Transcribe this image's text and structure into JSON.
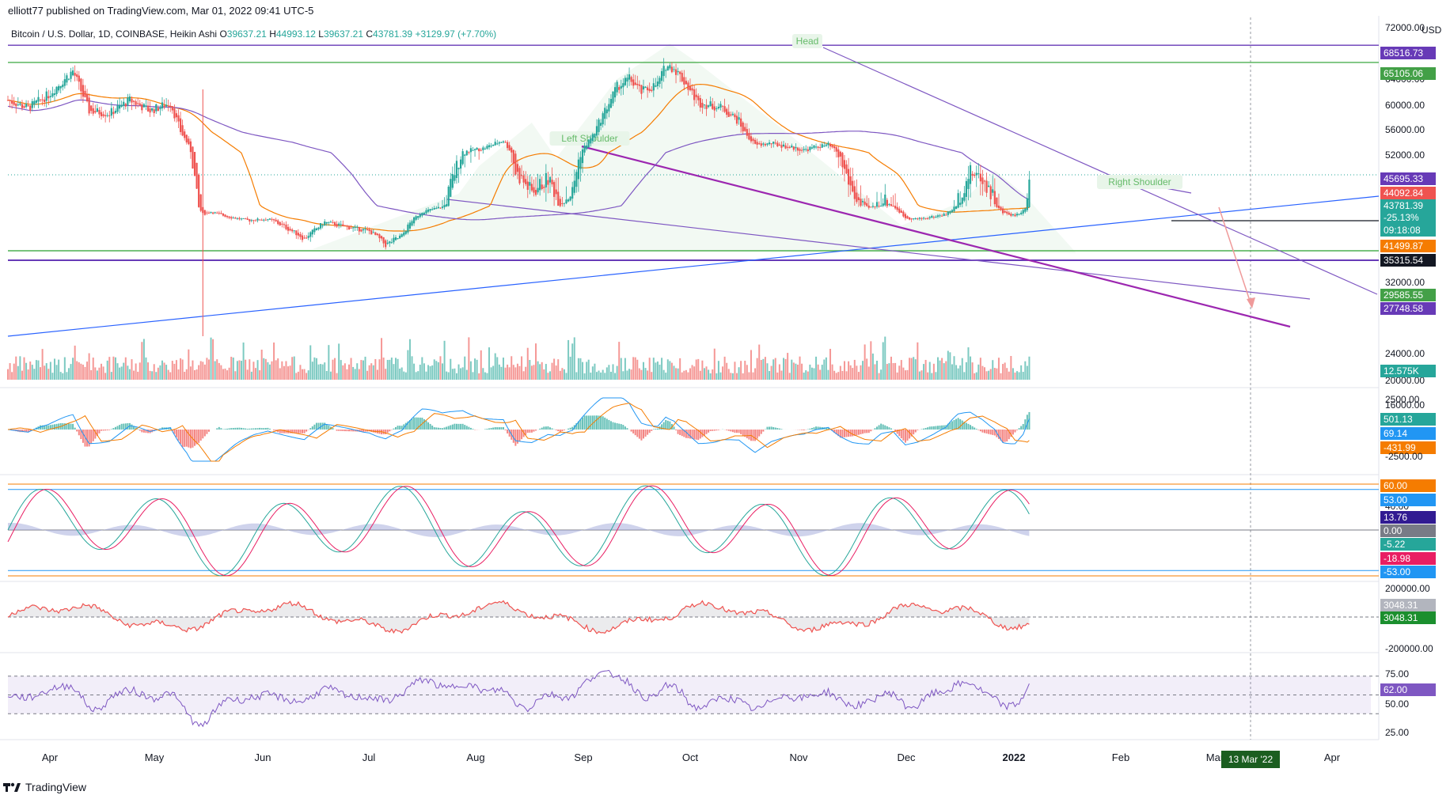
{
  "header": {
    "published": "elliott77 published on TradingView.com, Mar 01, 2022 09:41 UTC-5",
    "symbol": "Bitcoin / U.S. Dollar, 1D, COINBASE, Heikin Ashi",
    "o_label": "O",
    "o": "39637.21",
    "h_label": "H",
    "h": "44993.12",
    "l_label": "L",
    "l": "39637.21",
    "c_label": "C",
    "c": "43781.39",
    "change": "+3129.97 (+7.70%)"
  },
  "footer": {
    "brand": "TradingView"
  },
  "colors": {
    "bull": "#26a69a",
    "bear": "#ef5350",
    "ma_orange": "#f57c00",
    "ma_purple": "#7e57c2",
    "trend_blue": "#2962ff",
    "trend_magenta": "#9c27b0",
    "support_green": "#4caf50",
    "line_purple": "#673ab7"
  },
  "chart_data": [
    {
      "type": "candlestick",
      "title": "Bitcoin / U.S. Dollar, 1D, COINBASE, Heikin Ashi",
      "currency": "USD",
      "y_ticks": [
        "72000.00",
        "64000.00",
        "60000.00",
        "56000.00",
        "52000.00",
        "32000.00",
        "24000.00",
        "20000.00",
        "16000.00"
      ],
      "x_ticks": [
        "Apr",
        "May",
        "Jun",
        "Jul",
        "Aug",
        "Sep",
        "Oct",
        "Nov",
        "Dec",
        "2022",
        "Feb",
        "Mar",
        "Apr"
      ],
      "crosshair_date": "13 Mar '22",
      "annotations": [
        "Head",
        "Left Shoulder",
        "Right Shoulder"
      ],
      "price_labels": [
        {
          "text": "68516.73",
          "color": "#673ab7"
        },
        {
          "text": "65105.06",
          "color": "#43a047"
        },
        {
          "text": "45695.33",
          "color": "#673ab7"
        },
        {
          "text": "44092.84",
          "color": "#ef5350"
        },
        {
          "text": "43781.39",
          "color": "#26a69a"
        },
        {
          "text": "-25.13%",
          "color": "#26a69a"
        },
        {
          "text": "09:18:08",
          "color": "#26a69a"
        },
        {
          "text": "41499.87",
          "color": "#f57c00"
        },
        {
          "text": "35315.54",
          "color": "#131722"
        },
        {
          "text": "29585.55",
          "color": "#43a047"
        },
        {
          "text": "27748.58",
          "color": "#673ab7"
        },
        {
          "text": "12.575K",
          "color": "#26a69a"
        }
      ],
      "horizontal_levels": [
        68516.73,
        65105.06,
        29585.55,
        27748.58,
        35315.54
      ],
      "last_close": 43781.39
    },
    {
      "type": "macd",
      "y_ticks": [
        "2500.00",
        "-2500.00"
      ],
      "labels": [
        {
          "text": "501.13",
          "color": "#26a69a"
        },
        {
          "text": "69.14",
          "color": "#2196f3"
        },
        {
          "text": "-431.99",
          "color": "#f57c00"
        }
      ]
    },
    {
      "type": "oscillator",
      "y_ticks": [
        "40.00"
      ],
      "levels": [
        60,
        53,
        0,
        -53
      ],
      "labels": [
        {
          "text": "60.00",
          "color": "#f57c00"
        },
        {
          "text": "53.00",
          "color": "#2196f3"
        },
        {
          "text": "13.76",
          "color": "#311b92"
        },
        {
          "text": "0.00",
          "color": "#787b86"
        },
        {
          "text": "-5.22",
          "color": "#26a69a"
        },
        {
          "text": "-18.98",
          "color": "#e91e63"
        },
        {
          "text": "-53.00",
          "color": "#2196f3"
        }
      ]
    },
    {
      "type": "area",
      "y_ticks": [
        "200000.00",
        "-200000.00"
      ],
      "labels": [
        {
          "text": "3048.31",
          "color": "#b2b5be"
        },
        {
          "text": "3048.31",
          "color": "#1b8f2e"
        }
      ]
    },
    {
      "type": "line",
      "y_ticks": [
        "75.00",
        "50.00",
        "25.00"
      ],
      "bands": [
        70,
        30
      ],
      "labels": [
        {
          "text": "62.00",
          "color": "#7e57c2"
        }
      ],
      "last_value": 62.0
    }
  ]
}
